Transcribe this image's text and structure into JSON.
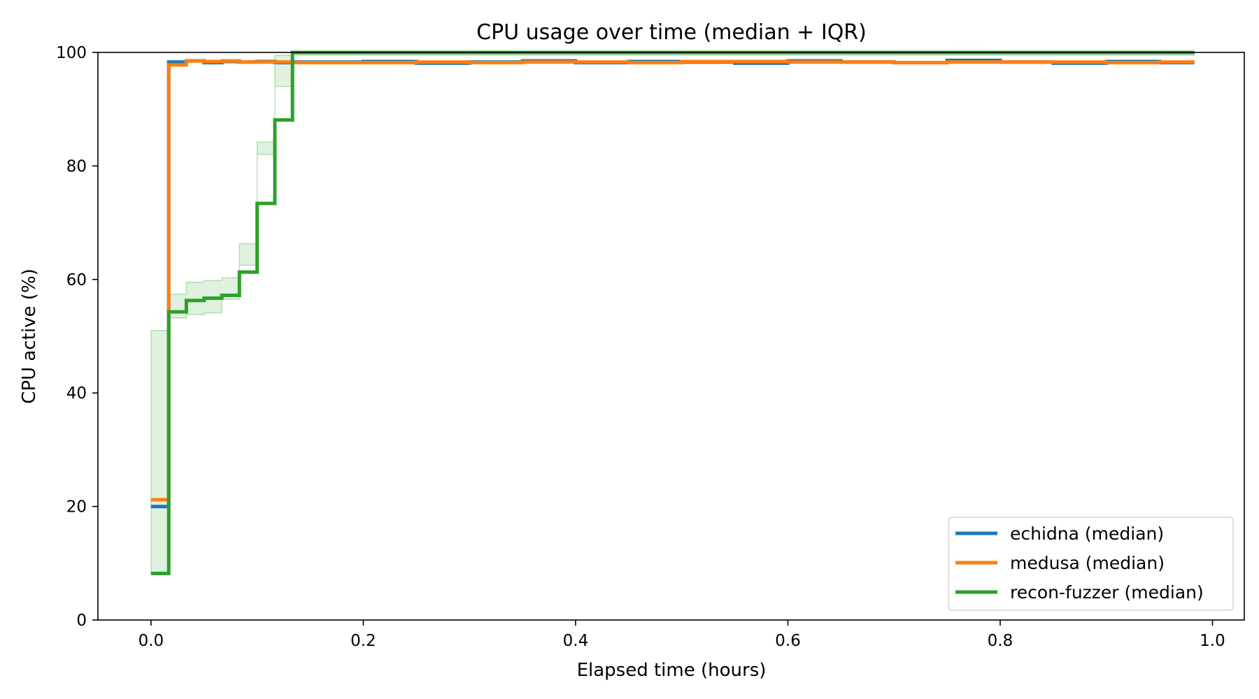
{
  "chart_data": {
    "type": "line",
    "title": "CPU usage over time (median + IQR)",
    "xlabel": "Elapsed time (hours)",
    "ylabel": "CPU active (%)",
    "xlim": [
      -0.05,
      1.03
    ],
    "ylim": [
      0,
      100
    ],
    "xticks": [
      0.0,
      0.2,
      0.4,
      0.6,
      0.8,
      1.0
    ],
    "xtick_labels": [
      "0.0",
      "0.2",
      "0.4",
      "0.6",
      "0.8",
      "1.0"
    ],
    "yticks": [
      0,
      20,
      40,
      60,
      80,
      100
    ],
    "ytick_labels": [
      "0",
      "20",
      "40",
      "60",
      "80",
      "100"
    ],
    "grid": false,
    "legend_position": "lower-right",
    "step": "post",
    "series": [
      {
        "name": "echidna (median)",
        "color": "#1f77b4",
        "x": [
          0.0,
          0.0167,
          0.0333,
          0.05,
          0.0667,
          0.0833,
          0.1,
          0.1167,
          0.1333,
          0.2,
          0.25,
          0.3,
          0.35,
          0.4,
          0.45,
          0.5,
          0.55,
          0.6,
          0.65,
          0.7,
          0.75,
          0.8,
          0.85,
          0.9,
          0.95,
          0.983
        ],
        "y": [
          20,
          98.3,
          98.5,
          98.2,
          98.4,
          98.3,
          98.4,
          98.2,
          98.3,
          98.4,
          98.1,
          98.3,
          98.5,
          98.2,
          98.4,
          98.3,
          98.1,
          98.5,
          98.3,
          98.2,
          98.6,
          98.3,
          98.1,
          98.4,
          98.2,
          98.2
        ]
      },
      {
        "name": "medusa (median)",
        "color": "#ff7f0e",
        "x": [
          0.0,
          0.0167,
          0.0333,
          0.05,
          0.0667,
          0.0833,
          0.1,
          0.1167,
          0.1333,
          0.2,
          0.25,
          0.3,
          0.35,
          0.4,
          0.45,
          0.5,
          0.55,
          0.6,
          0.65,
          0.7,
          0.75,
          0.8,
          0.85,
          0.9,
          0.95,
          0.983
        ],
        "y": [
          21.2,
          97.8,
          98.5,
          98.4,
          98.5,
          98.3,
          98.3,
          98.3,
          98.2,
          98.2,
          98.3,
          98.2,
          98.3,
          98.3,
          98.2,
          98.4,
          98.4,
          98.3,
          98.3,
          98.2,
          98.3,
          98.3,
          98.3,
          98.2,
          98.3,
          98.3
        ]
      },
      {
        "name": "recon-fuzzer (median)",
        "color": "#2ca02c",
        "x": [
          0.0,
          0.0167,
          0.0333,
          0.05,
          0.0667,
          0.0833,
          0.1,
          0.1167,
          0.1333,
          0.983
        ],
        "y": [
          8.2,
          54.3,
          56.3,
          56.7,
          57.2,
          61.3,
          73.4,
          88.1,
          100,
          100
        ],
        "iqr_low": [
          8.2,
          51.0,
          53.2,
          53.8,
          54.1,
          56.5,
          62.5,
          82.0,
          99.5,
          99.5
        ],
        "iqr_high": [
          8.2,
          57.4,
          59.5,
          59.8,
          60.3,
          66.3,
          84.2,
          94.0,
          100,
          100
        ]
      }
    ]
  }
}
